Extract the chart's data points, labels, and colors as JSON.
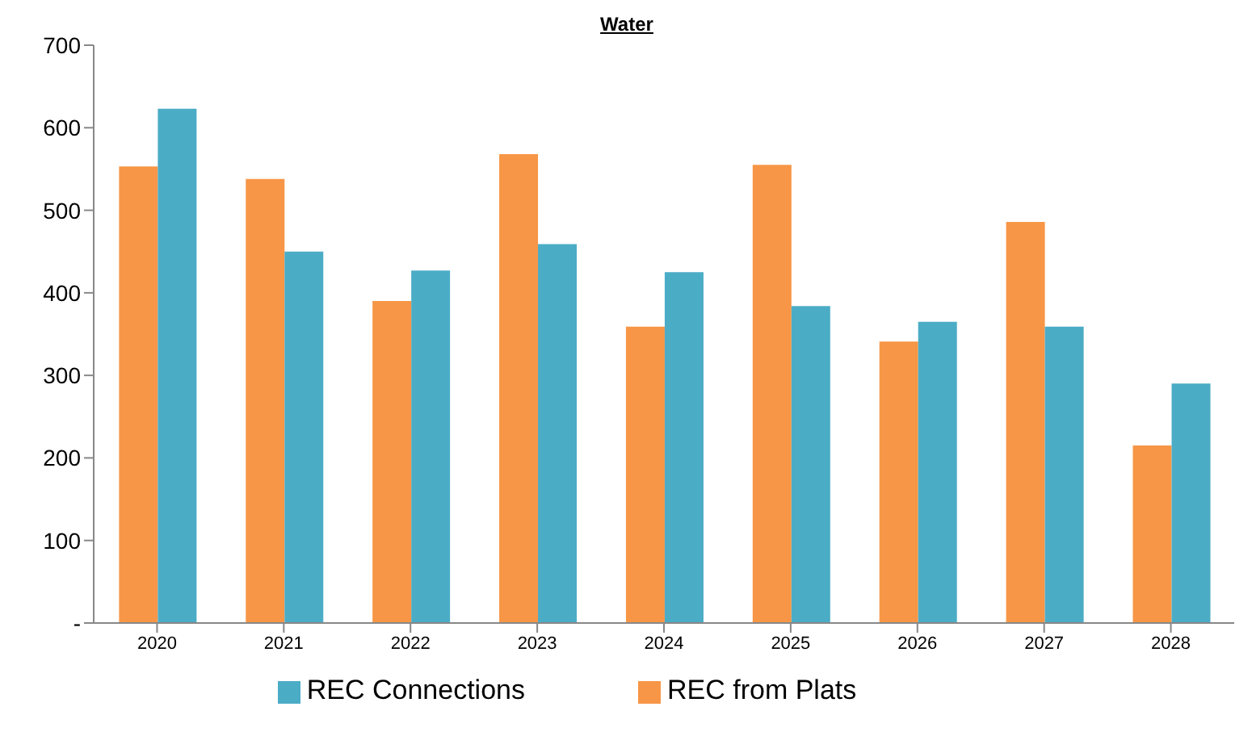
{
  "chart_data": {
    "type": "bar",
    "title": "Water",
    "categories": [
      "2020",
      "2021",
      "2022",
      "2023",
      "2024",
      "2025",
      "2026",
      "2027",
      "2028"
    ],
    "series": [
      {
        "name": "REC from Plats",
        "color": "#f79646",
        "values": [
          553,
          538,
          390,
          568,
          359,
          555,
          341,
          486,
          215
        ]
      },
      {
        "name": "REC Connections",
        "color": "#4bacc6",
        "values": [
          623,
          450,
          427,
          459,
          425,
          384,
          365,
          359,
          290
        ]
      }
    ],
    "ylim": [
      0,
      700
    ],
    "yticks": [
      {
        "value": 0,
        "label": "-"
      },
      100,
      200,
      300,
      400,
      500,
      600,
      700
    ],
    "grid": false,
    "legend": "bottom"
  }
}
